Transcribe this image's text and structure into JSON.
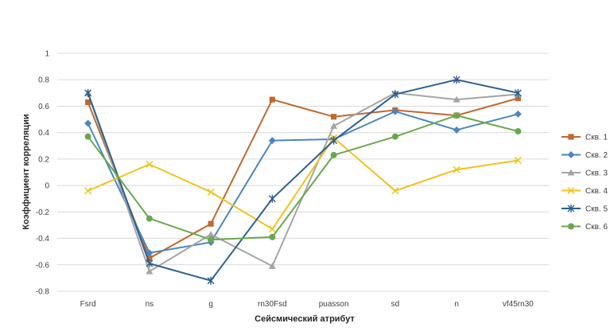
{
  "chart_data": {
    "type": "line",
    "title": "",
    "xlabel": "Сейсмический атрибут",
    "ylabel": "Коэффициент корреляции",
    "ylim": [
      -0.8,
      1
    ],
    "yticks": [
      "-0.8",
      "-0.6",
      "-0.4",
      "-0.2",
      "0",
      "0.2",
      "0.4",
      "0.6",
      "0.8",
      "1"
    ],
    "grid": "horizontal",
    "legend_position": "right",
    "categories": [
      "Fsrd",
      "ns",
      "g",
      "rn30Fsd",
      "puasson",
      "sd",
      "n",
      "vf45rn30"
    ],
    "series": [
      {
        "name": "Скв. 1",
        "color": "#c0692f",
        "marker": "square",
        "values": [
          0.63,
          -0.55,
          -0.29,
          0.65,
          0.52,
          0.57,
          0.53,
          0.66
        ]
      },
      {
        "name": "Скв. 2",
        "color": "#4a86c0",
        "marker": "diamond",
        "values": [
          0.47,
          -0.51,
          -0.43,
          0.34,
          0.35,
          0.56,
          0.42,
          0.54
        ]
      },
      {
        "name": "Скв. 3",
        "color": "#a5a5a5",
        "marker": "triangle",
        "values": [
          0.7,
          -0.65,
          -0.37,
          -0.61,
          0.45,
          0.7,
          0.65,
          0.69
        ]
      },
      {
        "name": "Скв. 4",
        "color": "#f0c419",
        "marker": "x",
        "values": [
          -0.04,
          0.16,
          -0.05,
          -0.33,
          0.36,
          -0.04,
          0.12,
          0.19
        ]
      },
      {
        "name": "Скв. 5",
        "color": "#2d5f8f",
        "marker": "star",
        "values": [
          0.7,
          -0.59,
          -0.72,
          -0.1,
          0.34,
          0.69,
          0.8,
          0.7
        ]
      },
      {
        "name": "Скв. 6",
        "color": "#6aa84f",
        "marker": "circle",
        "values": [
          0.37,
          -0.25,
          -0.41,
          -0.39,
          0.23,
          0.37,
          0.53,
          0.41
        ]
      }
    ]
  }
}
